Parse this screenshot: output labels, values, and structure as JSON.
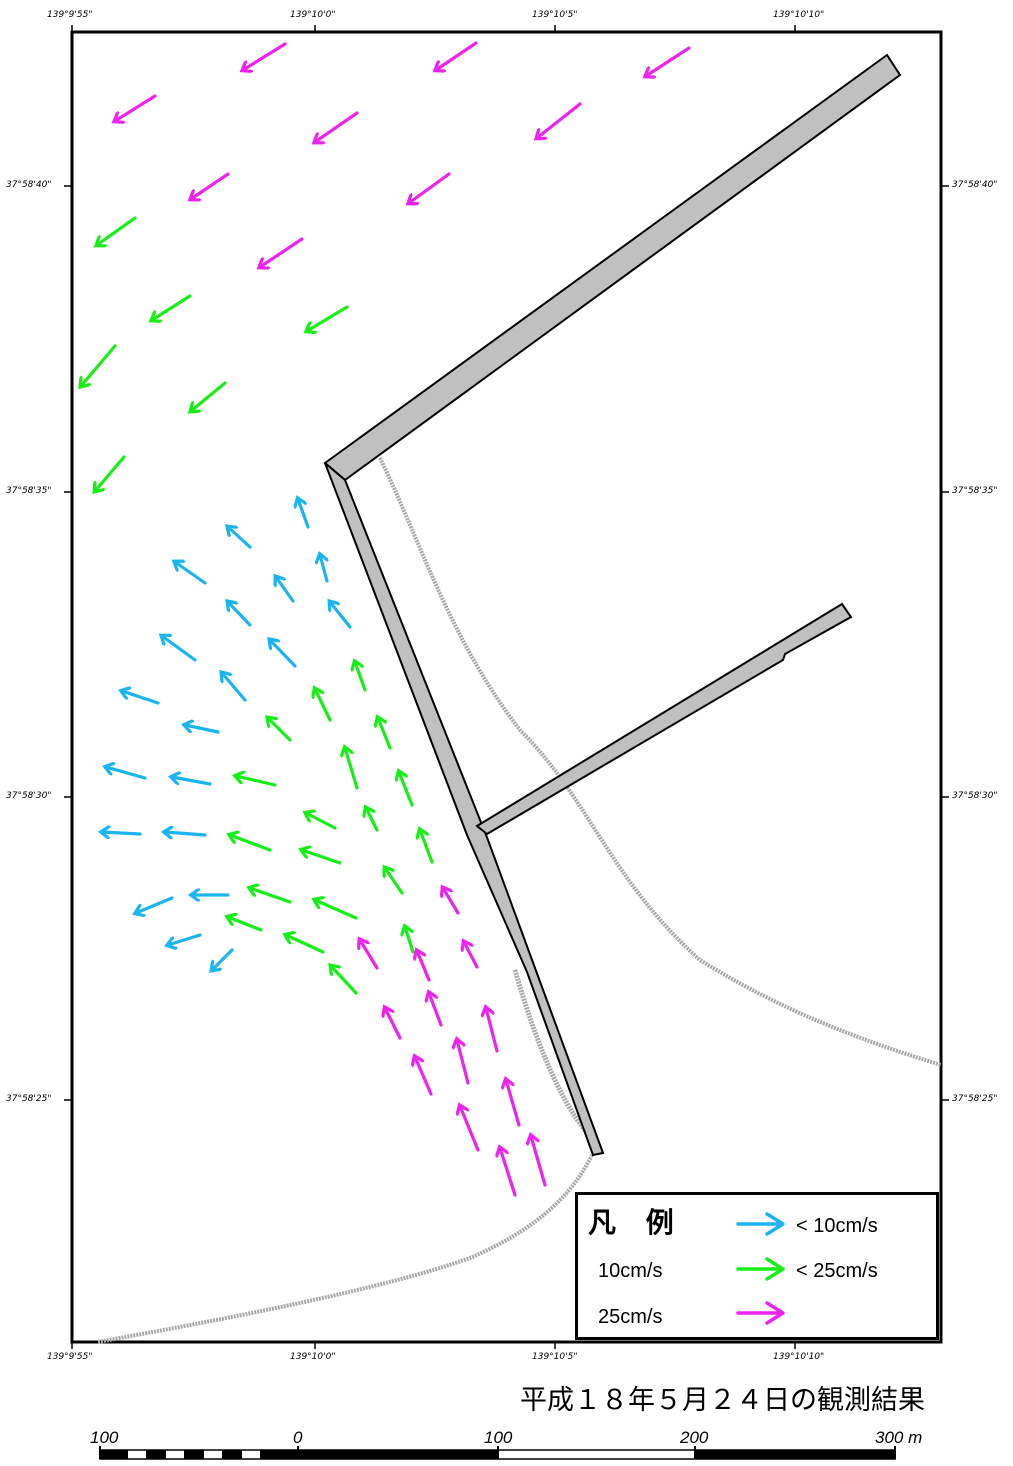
{
  "map": {
    "coords": {
      "lon_top": [
        "139°9'55\"",
        "139°10'0\"",
        "139°10'5\"",
        "139°10'10\""
      ],
      "lon_bottom": [
        "139°9'55\"",
        "139°10'0\"",
        "139°10'5\"",
        "139°10'10\""
      ],
      "lat_left": [
        "37°58'40\"",
        "37°58'35\"",
        "37°58'30\"",
        "37°58'25\""
      ],
      "lat_right": [
        "37°58'40\"",
        "37°58'35\"",
        "37°58'30\"",
        "37°58'25\""
      ]
    },
    "colors": {
      "slow": "#1ab4ee",
      "medium": "#17ee17",
      "fast": "#ee22ee",
      "breakwater_fill": "#c0c0c0",
      "shoreline": "#a8a8a8"
    }
  },
  "legend": {
    "title": "凡 例",
    "items": [
      {
        "left": "",
        "right": "< 10cm/s",
        "color_key": "slow"
      },
      {
        "left": "10cm/s",
        "right": "< 25cm/s",
        "color_key": "medium"
      },
      {
        "left": "25cm/s",
        "right": "",
        "color_key": "fast"
      }
    ]
  },
  "caption": "平成１８年５月２４日の観測結果",
  "scale_bar": {
    "labels": [
      "100",
      "0",
      "100",
      "200",
      "300 m"
    ]
  }
}
